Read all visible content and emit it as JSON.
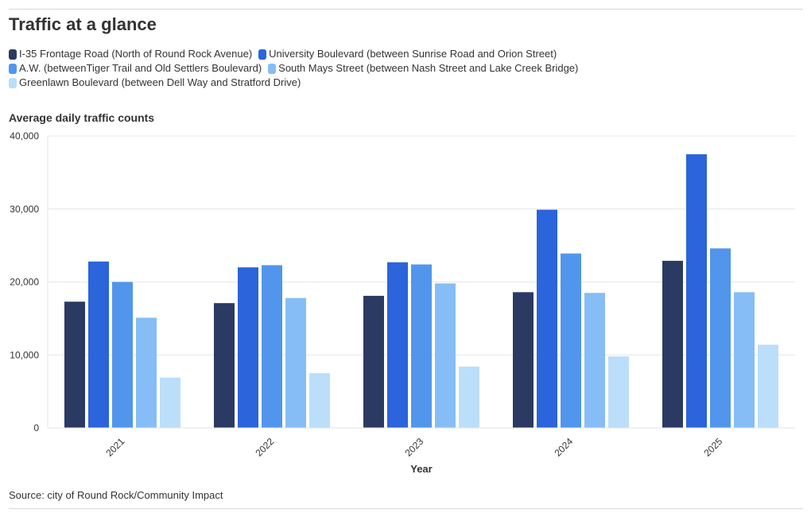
{
  "header": {
    "title": "Traffic at a glance",
    "source": "Source: city of Round Rock/Community Impact"
  },
  "legend": [
    {
      "label": "I-35 Frontage Road (North of Round Rock Avenue)",
      "color": "#2b3a63"
    },
    {
      "label": "University Boulevard (between Sunrise Road and Orion Street)",
      "color": "#2b64db"
    },
    {
      "label": "A.W. (betweenTiger Trail and Old Settlers Boulevard)",
      "color": "#5196ec"
    },
    {
      "label": "South Mays Street (between Nash Street and Lake Creek Bridge)",
      "color": "#86bdf7"
    },
    {
      "label": "Greenlawn Boulevard (between Dell Way and Stratford Drive)",
      "color": "#bbdefa"
    }
  ],
  "chart_data": {
    "type": "bar",
    "title": "Average daily traffic counts",
    "xlabel": "Year",
    "ylabel": "",
    "categories": [
      "2021",
      "2022",
      "2023",
      "2024",
      "2025"
    ],
    "ylim": [
      0,
      40000
    ],
    "yticks": [
      0,
      10000,
      20000,
      30000,
      40000
    ],
    "ytick_labels": [
      "0",
      "10,000",
      "20,000",
      "30,000",
      "40,000"
    ],
    "grid": true,
    "legend_placement": "top",
    "series": [
      {
        "name": "I-35 Frontage Road (North of Round Rock Avenue)",
        "color": "#2b3a63",
        "values": [
          17300,
          17100,
          18100,
          18600,
          22900
        ]
      },
      {
        "name": "University Boulevard (between Sunrise Road and Orion Street)",
        "color": "#2b64db",
        "values": [
          22800,
          22000,
          22700,
          29900,
          37500
        ]
      },
      {
        "name": "A.W. (betweenTiger Trail and Old Settlers Boulevard)",
        "color": "#5196ec",
        "values": [
          20000,
          22300,
          22400,
          23900,
          24600
        ]
      },
      {
        "name": "South Mays Street (between Nash Street and Lake Creek Bridge)",
        "color": "#86bdf7",
        "values": [
          15100,
          17800,
          19800,
          18500,
          18600
        ]
      },
      {
        "name": "Greenlawn Boulevard (between Dell Way and Stratford Drive)",
        "color": "#bbdefa",
        "values": [
          6900,
          7500,
          8400,
          9800,
          11400
        ]
      }
    ]
  }
}
